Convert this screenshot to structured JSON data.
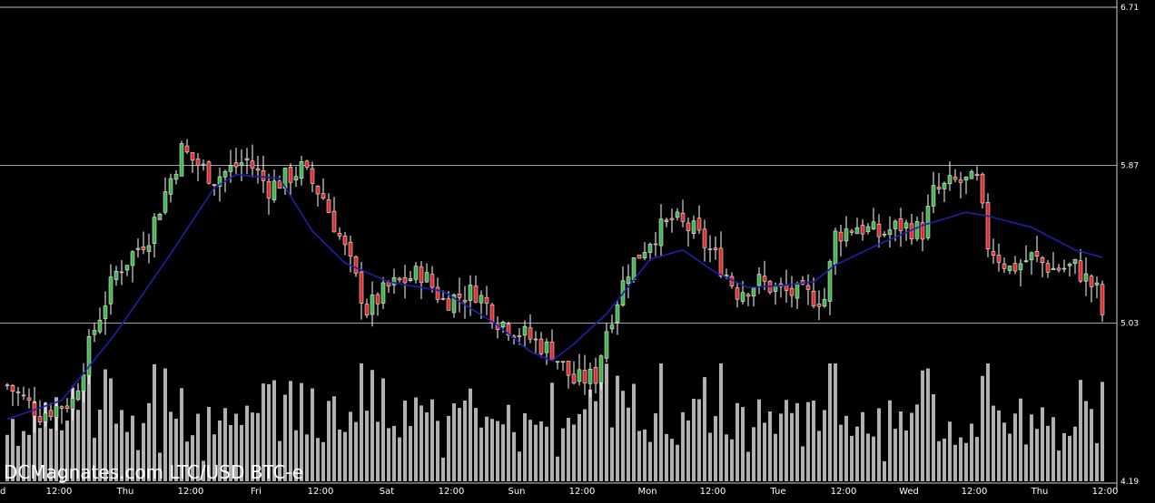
{
  "chart_data": {
    "type": "candlestick",
    "title": "DCMagnates.com LTC/USD BTC-e",
    "y_ticks": [
      "6.71",
      "5.87",
      "5.03",
      "4.19"
    ],
    "ylim": [
      4.19,
      6.71
    ],
    "x_ticks": [
      "d",
      "12:00",
      "Thu",
      "12:00",
      "Fri",
      "12:00",
      "Sat",
      "12:00",
      "Sun",
      "12:00",
      "Mon",
      "12:00",
      "Tue",
      "12:00",
      "Wed",
      "12:00",
      "Thu",
      "12:00"
    ],
    "grid": "horizontal",
    "colors": {
      "background": "#000000",
      "up": "#44b24f",
      "down": "#d9302f",
      "wick": "#ffffff",
      "moving_average": "#1e20a8",
      "volume": "#b0b0b0",
      "grid": "#ffffff"
    },
    "close_anchors": [
      [
        0,
        4.7
      ],
      [
        6,
        4.55
      ],
      [
        12,
        4.62
      ],
      [
        16,
        5.0
      ],
      [
        20,
        5.3
      ],
      [
        26,
        5.5
      ],
      [
        32,
        5.95
      ],
      [
        38,
        5.8
      ],
      [
        44,
        5.9
      ],
      [
        48,
        5.75
      ],
      [
        54,
        5.85
      ],
      [
        58,
        5.7
      ],
      [
        62,
        5.42
      ],
      [
        66,
        5.1
      ],
      [
        70,
        5.22
      ],
      [
        76,
        5.3
      ],
      [
        80,
        5.15
      ],
      [
        86,
        5.2
      ],
      [
        90,
        5.05
      ],
      [
        96,
        4.95
      ],
      [
        100,
        4.88
      ],
      [
        104,
        4.72
      ],
      [
        108,
        4.75
      ],
      [
        110,
        5.0
      ],
      [
        114,
        5.32
      ],
      [
        118,
        5.48
      ],
      [
        122,
        5.58
      ],
      [
        126,
        5.52
      ],
      [
        130,
        5.38
      ],
      [
        134,
        5.2
      ],
      [
        138,
        5.25
      ],
      [
        142,
        5.2
      ],
      [
        146,
        5.18
      ],
      [
        150,
        5.16
      ],
      [
        152,
        5.5
      ],
      [
        156,
        5.55
      ],
      [
        160,
        5.5
      ],
      [
        164,
        5.55
      ],
      [
        168,
        5.52
      ],
      [
        170,
        5.72
      ],
      [
        174,
        5.78
      ],
      [
        178,
        5.78
      ],
      [
        180,
        5.45
      ],
      [
        184,
        5.32
      ],
      [
        188,
        5.38
      ],
      [
        192,
        5.32
      ],
      [
        196,
        5.33
      ],
      [
        200,
        5.2
      ],
      [
        201,
        5.08
      ]
    ],
    "moving_average_anchors": [
      [
        0,
        4.52
      ],
      [
        10,
        4.62
      ],
      [
        20,
        4.98
      ],
      [
        30,
        5.4
      ],
      [
        38,
        5.75
      ],
      [
        42,
        5.82
      ],
      [
        50,
        5.8
      ],
      [
        56,
        5.52
      ],
      [
        62,
        5.35
      ],
      [
        70,
        5.25
      ],
      [
        80,
        5.2
      ],
      [
        90,
        5.02
      ],
      [
        96,
        4.88
      ],
      [
        100,
        4.83
      ],
      [
        104,
        4.92
      ],
      [
        110,
        5.08
      ],
      [
        118,
        5.37
      ],
      [
        124,
        5.42
      ],
      [
        130,
        5.3
      ],
      [
        136,
        5.22
      ],
      [
        142,
        5.23
      ],
      [
        148,
        5.25
      ],
      [
        152,
        5.34
      ],
      [
        160,
        5.45
      ],
      [
        168,
        5.55
      ],
      [
        176,
        5.62
      ],
      [
        180,
        5.6
      ],
      [
        188,
        5.54
      ],
      [
        196,
        5.42
      ],
      [
        201,
        5.38
      ]
    ]
  }
}
